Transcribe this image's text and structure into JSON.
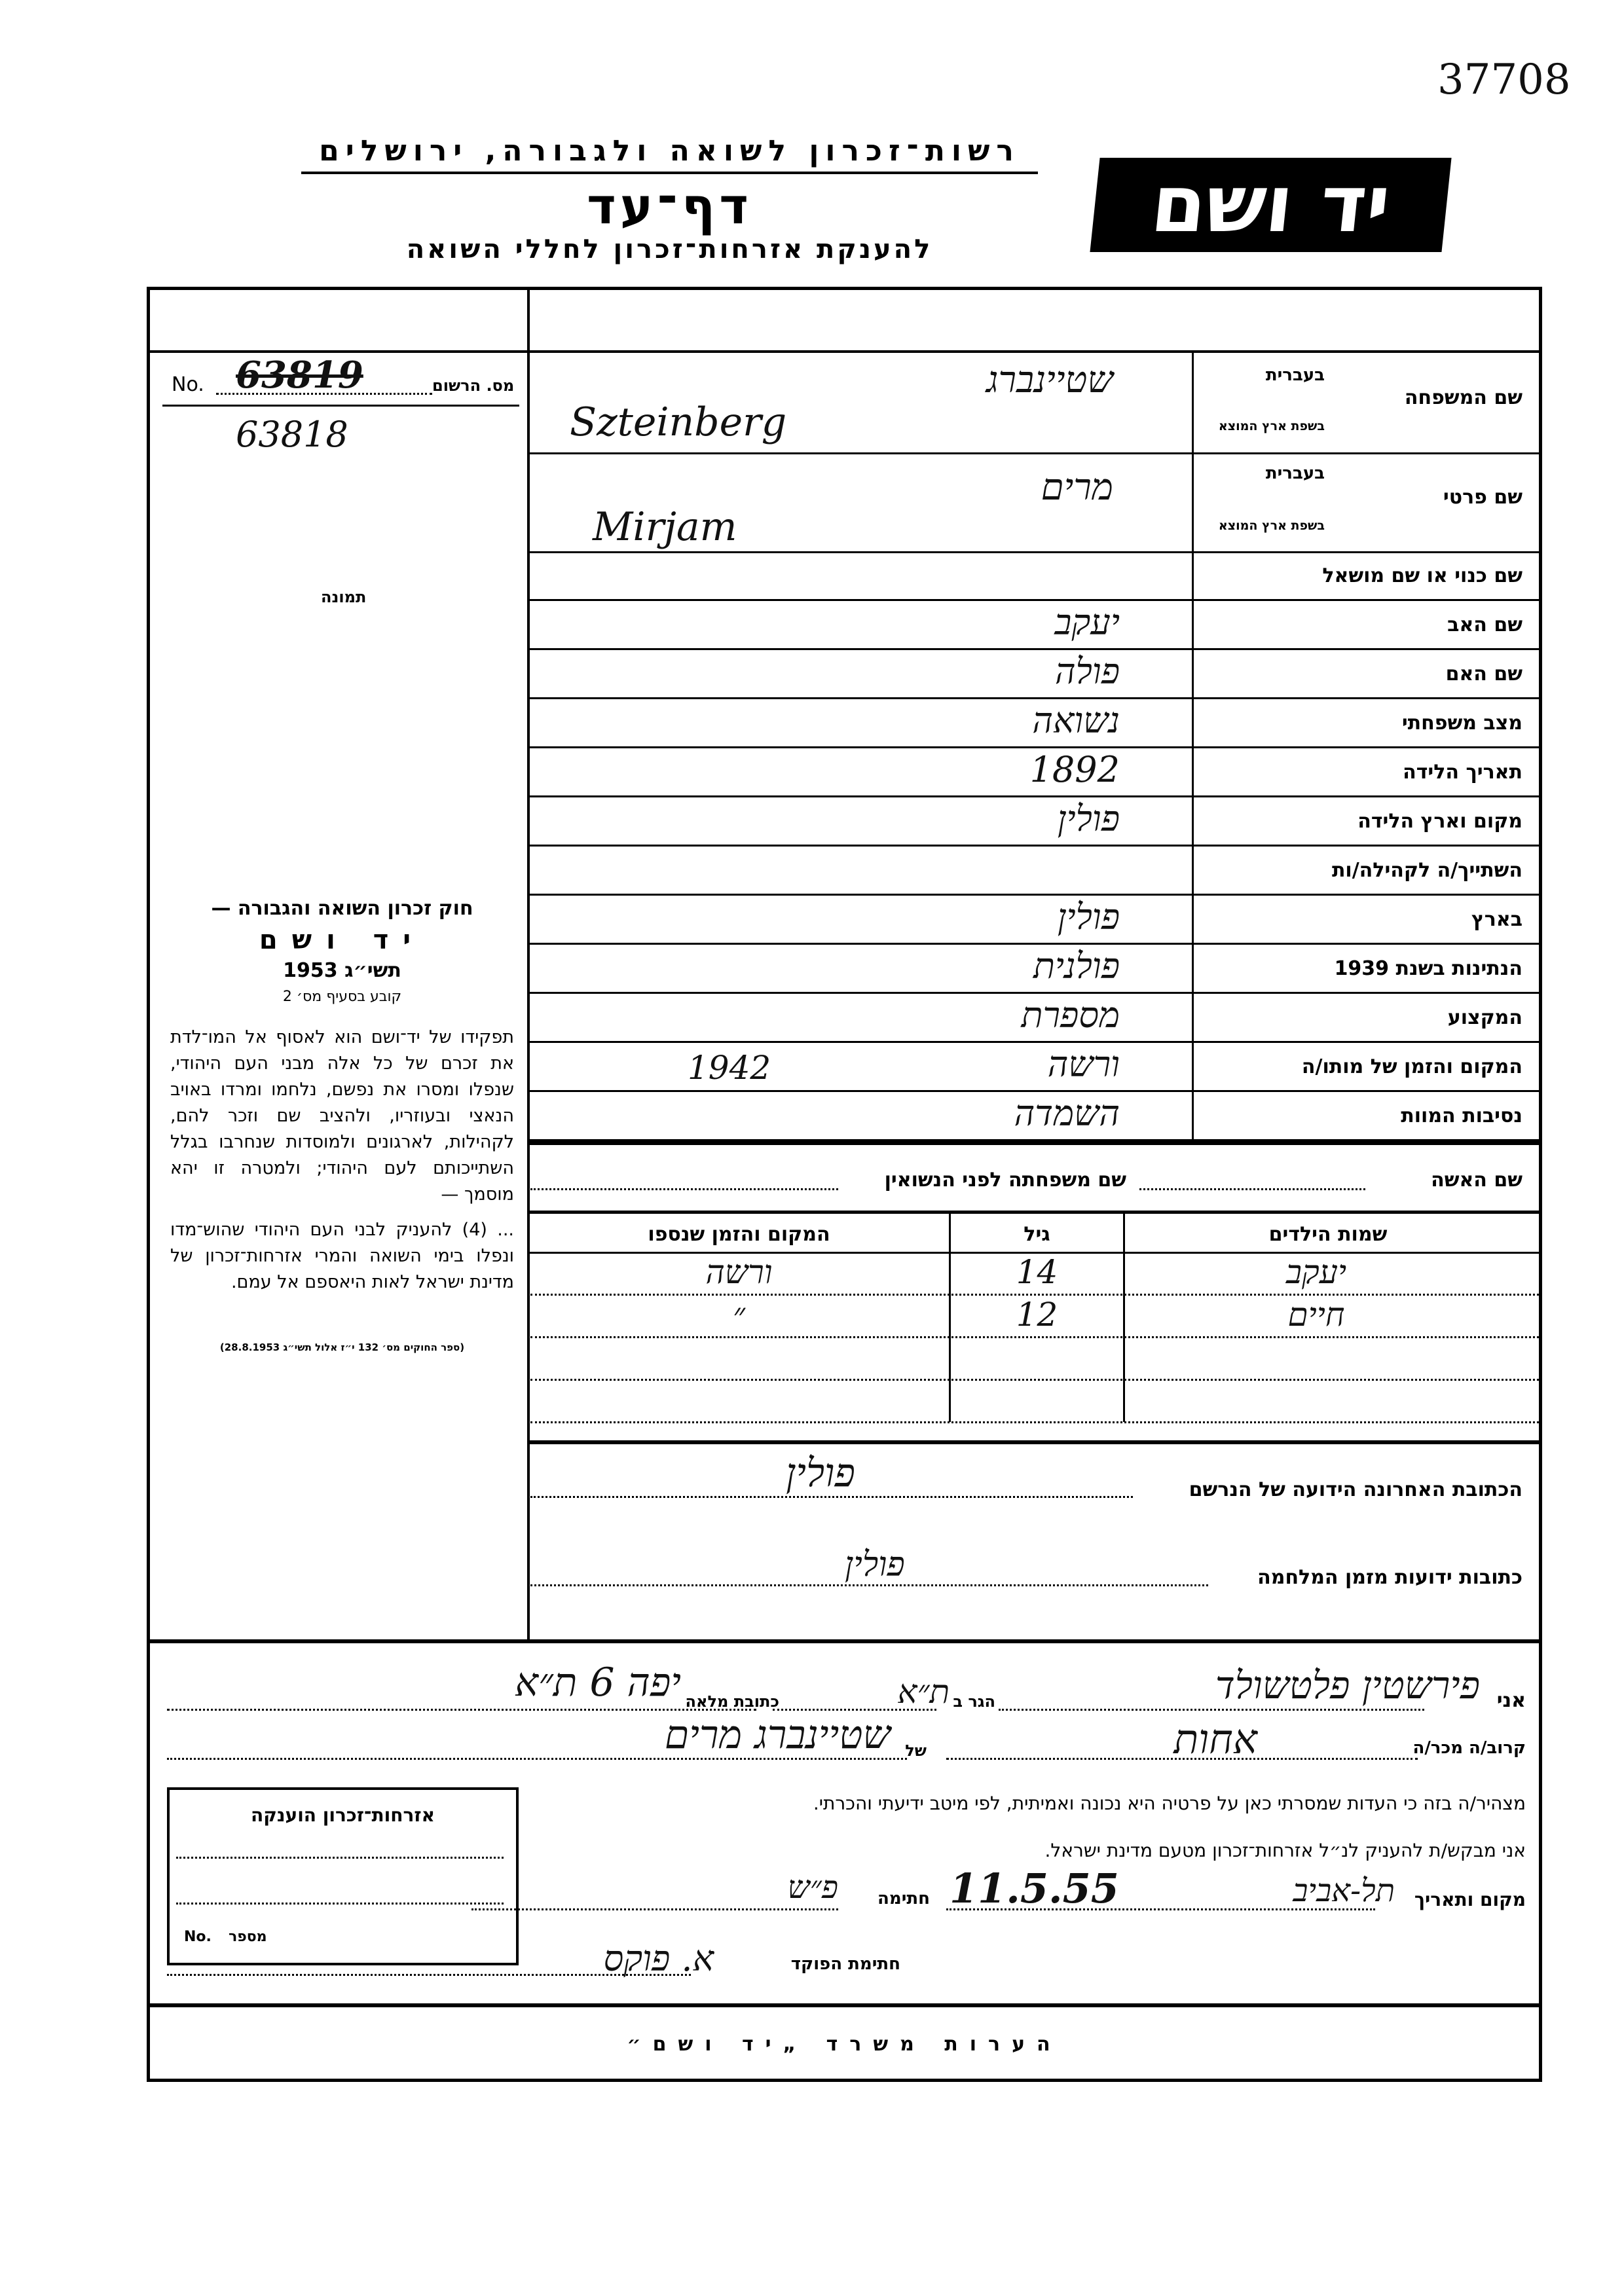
{
  "archive_number": "37708",
  "header": {
    "authority": "רשות־זכרון לשואה ולגבורה, ירושלים",
    "title": "דף־עד",
    "subtitle": "להענקת אזרחות־זכרון לחללי השואה",
    "logo_text": "יד ושם"
  },
  "registration": {
    "label_he": "מס. הרשום",
    "label_en": "No.",
    "value_crossed": "63819",
    "value": "63818",
    "photo_label": "תמונה"
  },
  "law": {
    "title": "חוק זכרון השואה והגבורה —",
    "name": "יד ושם",
    "year": "תשי״ג 1953",
    "section": "קובע בסעיף מס׳ 2",
    "paragraph1": "תפקידו של יד־ושם הוא לאסוף אל המו־לדת את זכרם של כל אלה מבני העם היהודי, שנפלו ומסרו את נפשם, נלחמו ומרדו באויב הנאצי ובעוזריו, ולהציב שם וזכר להם, לקהילות, לארגונים ולמוסדות שנחרבו בגלל השתייכותם לעם היהודי; ולמטרה זו יהא מוסמך —",
    "paragraph2": "... (4) להעניק לבני העם היהודי שהוש־מדו ונפלו בימי השואה והמרי אזרחות־זכרון של מדינת ישראל לאות היאספם אל עמם.",
    "citation": "(ספר החוקים מס׳ 132 י״ז אלול תשי״ג 28.8.1953)"
  },
  "fields": {
    "in_hebrew": "בעברית",
    "in_origin_language": "בשפת ארץ המוצא",
    "surname": {
      "label": "שם המשפחה",
      "hebrew": "שטיינברג",
      "origin": "Szteinberg"
    },
    "first_name": {
      "label": "שם פרטי",
      "hebrew": "מרים",
      "origin": "Mirjam"
    },
    "rows": [
      {
        "label": "שם כנוי או שם מושאל",
        "value": ""
      },
      {
        "label": "שם האב",
        "value": "יעקב"
      },
      {
        "label": "שם האם",
        "value": "פולה"
      },
      {
        "label": "מצב משפחתי",
        "value": "נשואה"
      },
      {
        "label": "תאריך הלידה",
        "value": "1892"
      },
      {
        "label": "מקום וארץ הלידה",
        "value": "פולין"
      },
      {
        "label": "השתייך/ה לקהילה/ות",
        "value": ""
      },
      {
        "label": "בארץ",
        "value": "פולין"
      },
      {
        "label": "הנתינות בשנת 1939",
        "value": "פולנית"
      },
      {
        "label": "המקצוע",
        "value": "מספרת"
      },
      {
        "label": "המקום והזמן של מותו/ה",
        "value": "ורשה",
        "extra": "1942"
      },
      {
        "label": "נסיבות המוות",
        "value": "השמדה"
      }
    ]
  },
  "spouse": {
    "label": "שם האשה",
    "maiden_label": "שם משפחתה לפני הנשואין",
    "value": "",
    "maiden_value": ""
  },
  "children": {
    "headers": [
      "שמות הילדים",
      "גיל",
      "המקום והזמן שנספו"
    ],
    "rows": [
      [
        "יעקב",
        "14",
        "ורשה"
      ],
      [
        "חיים",
        "12",
        "״"
      ],
      [
        "",
        "",
        ""
      ],
      [
        "",
        "",
        ""
      ]
    ]
  },
  "addresses": {
    "last_label": "הכתובת האחרונה הידועה של הנרשם",
    "last_value": "פולין",
    "war_label": "כתובות ידועות מזמן המלחמה",
    "war_value": "פולין"
  },
  "declarant": {
    "i_label": "אני",
    "name": "פירשטין פלטשולד",
    "resides_label": "הגר ב",
    "city": "ת״א",
    "address_label": "כתובת מלאה",
    "address": "יפה 6 ת״א",
    "relation_label": "קרוב/ה מכר/ה",
    "relation": "אחות",
    "of_label": "של",
    "of_name": "שטיינברג מרים",
    "declaration": "מצהיר/ה בזה כי העדות שמסרתי כאן על פרטיה היא נכונה ואמיתית, לפי מיטב ידיעתי והכרתי.",
    "request": "אני מבקש/ת להעניק לנ״ל אזרחות־זכרון מטעם מדינת ישראל.",
    "place_date_label": "מקום ותאריך",
    "place": "תל-אביב",
    "date": "11.5.55",
    "signature_label": "חתימה",
    "signature": "פ״ש",
    "officer_label": "חתימת הפוקד",
    "officer_signature": "א. פוקס"
  },
  "citizenship_box": {
    "title": "אזרחות־זכרון הוענקה",
    "number_label": "מספר",
    "number_label_en": "No."
  },
  "footer": {
    "remarks": "הערות משרד „יד ושם״"
  }
}
